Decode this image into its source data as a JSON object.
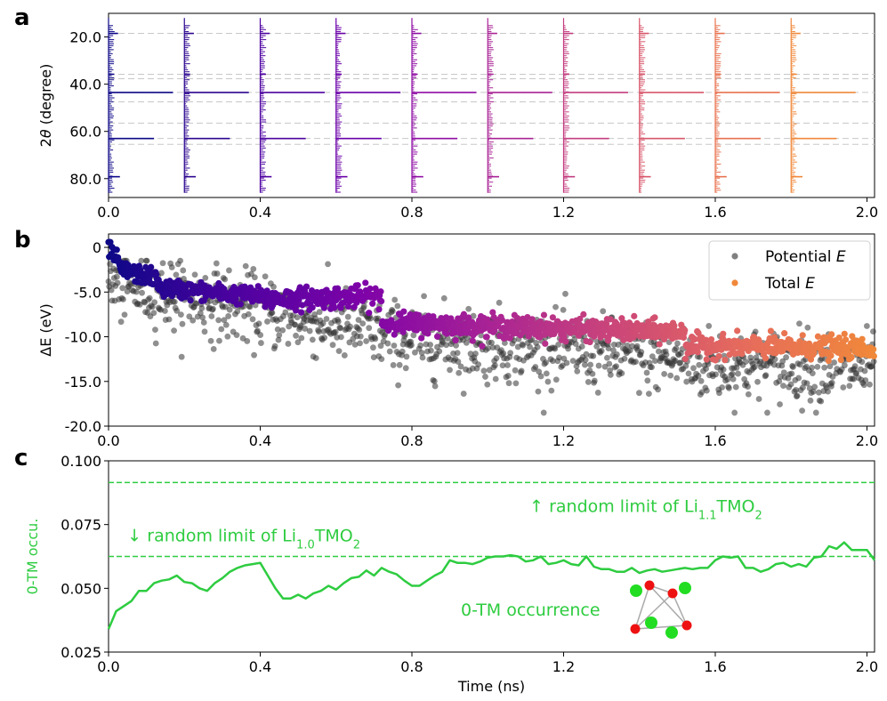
{
  "panels": {
    "a": {
      "letter": "a"
    },
    "b": {
      "letter": "b"
    },
    "c": {
      "letter": "c"
    }
  },
  "chart_data": [
    {
      "panel": "a",
      "type": "line",
      "description_type": "stacked XRD patterns at successive times",
      "ylabel_prefix": "2",
      "ylabel_symbol": "θ",
      "ylabel_suffix": " (degree)",
      "y_inverted": true,
      "ylim": [
        88,
        10
      ],
      "yticks": [
        20,
        40,
        60,
        80
      ],
      "ytick_labels": [
        "20.0",
        "40.0",
        "60.0",
        "80.0"
      ],
      "xlim": [
        0.0,
        2.02
      ],
      "xticks": [
        0.0,
        0.4,
        0.8,
        1.2,
        1.6,
        2.0
      ],
      "xtick_labels": [
        "0.0",
        "0.4",
        "0.8",
        "1.2",
        "1.6",
        "2.0"
      ],
      "pattern_offsets_ns": [
        0.0,
        0.2,
        0.4,
        0.6,
        0.8,
        1.0,
        1.2,
        1.4,
        1.6,
        1.8
      ],
      "pattern_colors": [
        "#0d0887",
        "#2c068f",
        "#4d02a0",
        "#6a00a8",
        "#8f0da4",
        "#a92395",
        "#c33d80",
        "#d8576b",
        "#e8724f",
        "#f0883a"
      ],
      "reference_lines_deg": [
        18.5,
        35.8,
        37.7,
        43.5,
        47.5,
        56.5,
        63.0,
        65.5
      ],
      "main_peaks": [
        {
          "two_theta": 18.5,
          "height": 0.025
        },
        {
          "two_theta": 35.8,
          "height": 0.015
        },
        {
          "two_theta": 43.5,
          "height": 0.17
        },
        {
          "two_theta": 63.0,
          "height": 0.12
        },
        {
          "two_theta": 79.2,
          "height": 0.03
        }
      ]
    },
    {
      "panel": "b",
      "type": "scatter",
      "ylabel": "ΔE (eV)",
      "xlim": [
        0.0,
        2.02
      ],
      "ylim": [
        -20.0,
        1.5
      ],
      "xticks": [
        0.0,
        0.4,
        0.8,
        1.2,
        1.6,
        2.0
      ],
      "xtick_labels": [
        "0.0",
        "0.4",
        "0.8",
        "1.2",
        "1.6",
        "2.0"
      ],
      "yticks": [
        0,
        -5,
        -10,
        -15,
        -20
      ],
      "ytick_labels": [
        "0",
        "-5.0",
        "-10.0",
        "-15.0",
        "-20.0"
      ],
      "legend": {
        "placement": "top-right",
        "entries": [
          {
            "label_prefix": "Potential ",
            "label_italic": "E",
            "color": "#555555"
          },
          {
            "label_prefix": "Total ",
            "label_italic": "E",
            "color": "#f0883a"
          }
        ]
      },
      "series": [
        {
          "name": "Total E",
          "color_scale": [
            "#0d0887",
            "#4d02a0",
            "#7e03a8",
            "#a92395",
            "#cc4778",
            "#e66c5c",
            "#f0883a"
          ],
          "segments": [
            {
              "x": [
                0.0,
                0.03
              ],
              "y_start": 0.0,
              "y_end": -2.0,
              "noise": 0.5
            },
            {
              "x": [
                0.03,
                0.13
              ],
              "y_start": -2.5,
              "y_end": -3.5,
              "noise": 0.5
            },
            {
              "x": [
                0.13,
                0.4
              ],
              "y_start": -4.5,
              "y_end": -5.5,
              "noise": 0.5
            },
            {
              "x": [
                0.4,
                0.72
              ],
              "y_start": -5.8,
              "y_end": -5.5,
              "noise": 0.6
            },
            {
              "x": [
                0.72,
                0.76
              ],
              "y_start": -8.5,
              "y_end": -8.5,
              "noise": 0.4
            },
            {
              "x": [
                0.76,
                1.52
              ],
              "y_start": -8.5,
              "y_end": -9.5,
              "noise": 0.6
            },
            {
              "x": [
                1.52,
                2.02
              ],
              "y_start": -11.0,
              "y_end": -11.3,
              "noise": 0.6
            }
          ]
        },
        {
          "name": "Potential E",
          "color": "#333333",
          "segments": [
            {
              "x": [
                0.0,
                0.72
              ],
              "y_start": -4.0,
              "y_end": -9.5,
              "noise": 2.0
            },
            {
              "x": [
                0.72,
                1.52
              ],
              "y_start": -10.0,
              "y_end": -12.5,
              "noise": 2.0
            },
            {
              "x": [
                1.52,
                2.02
              ],
              "y_start": -13.0,
              "y_end": -13.5,
              "noise": 2.0
            }
          ]
        }
      ]
    },
    {
      "panel": "c",
      "type": "line",
      "xlabel": "Time (ns)",
      "ylabel": "0-TM occu.",
      "xlim": [
        0.0,
        2.02
      ],
      "ylim": [
        0.025,
        0.1
      ],
      "xticks": [
        0.0,
        0.4,
        0.8,
        1.2,
        1.6,
        2.0
      ],
      "xtick_labels": [
        "0.0",
        "0.4",
        "0.8",
        "1.2",
        "1.6",
        "2.0"
      ],
      "yticks": [
        0.025,
        0.05,
        0.075,
        0.1
      ],
      "ytick_labels": [
        "0.025",
        "0.050",
        "0.075",
        "0.100"
      ],
      "color": "#2ecc40",
      "reference_lines": [
        {
          "y": 0.0915,
          "label_arrow": "↑ random limit of Li",
          "label_sub": "1.1",
          "label_rest": "TMO",
          "label_sub2": "2",
          "label_x": 1.11,
          "label_y": 0.08
        },
        {
          "y": 0.0625,
          "label_arrow": "↓ random limit of Li",
          "label_sub": "1.0",
          "label_rest": "TMO",
          "label_sub2": "2",
          "label_x": 0.05,
          "label_y": 0.0685
        }
      ],
      "annotation": "0-TM occurrence",
      "series": [
        {
          "name": "0-TM occurrence",
          "x": [
            0.0,
            0.02,
            0.04,
            0.06,
            0.08,
            0.1,
            0.12,
            0.14,
            0.16,
            0.18,
            0.2,
            0.22,
            0.24,
            0.26,
            0.28,
            0.3,
            0.32,
            0.34,
            0.36,
            0.38,
            0.4,
            0.42,
            0.44,
            0.46,
            0.48,
            0.5,
            0.52,
            0.54,
            0.56,
            0.58,
            0.6,
            0.62,
            0.64,
            0.66,
            0.68,
            0.7,
            0.72,
            0.74,
            0.76,
            0.78,
            0.8,
            0.82,
            0.84,
            0.86,
            0.88,
            0.9,
            0.92,
            0.94,
            0.96,
            0.98,
            1.0,
            1.02,
            1.04,
            1.06,
            1.08,
            1.1,
            1.12,
            1.14,
            1.16,
            1.18,
            1.2,
            1.22,
            1.24,
            1.26,
            1.28,
            1.3,
            1.32,
            1.34,
            1.36,
            1.38,
            1.4,
            1.42,
            1.44,
            1.46,
            1.48,
            1.5,
            1.52,
            1.54,
            1.56,
            1.58,
            1.6,
            1.62,
            1.64,
            1.66,
            1.68,
            1.7,
            1.72,
            1.74,
            1.76,
            1.78,
            1.8,
            1.82,
            1.84,
            1.86,
            1.88,
            1.9,
            1.92,
            1.94,
            1.96,
            1.98,
            2.0,
            2.02
          ],
          "y": [
            0.034,
            0.041,
            0.043,
            0.045,
            0.049,
            0.049,
            0.052,
            0.053,
            0.0535,
            0.055,
            0.0525,
            0.052,
            0.05,
            0.049,
            0.052,
            0.054,
            0.0565,
            0.058,
            0.059,
            0.0595,
            0.06,
            0.055,
            0.05,
            0.046,
            0.046,
            0.0475,
            0.046,
            0.048,
            0.049,
            0.051,
            0.0495,
            0.052,
            0.054,
            0.0545,
            0.057,
            0.055,
            0.058,
            0.0565,
            0.0555,
            0.053,
            0.051,
            0.051,
            0.053,
            0.055,
            0.0565,
            0.061,
            0.06,
            0.06,
            0.0595,
            0.0605,
            0.062,
            0.0625,
            0.0625,
            0.063,
            0.0625,
            0.0605,
            0.061,
            0.0625,
            0.0595,
            0.06,
            0.061,
            0.0595,
            0.059,
            0.0625,
            0.0585,
            0.0575,
            0.0575,
            0.0565,
            0.0565,
            0.058,
            0.056,
            0.057,
            0.0575,
            0.0565,
            0.057,
            0.0575,
            0.058,
            0.0575,
            0.058,
            0.058,
            0.061,
            0.0625,
            0.062,
            0.0625,
            0.058,
            0.058,
            0.0565,
            0.0575,
            0.0595,
            0.06,
            0.0585,
            0.0595,
            0.0585,
            0.062,
            0.0625,
            0.0665,
            0.0655,
            0.068,
            0.065,
            0.065,
            0.065,
            0.061
          ]
        }
      ]
    }
  ]
}
